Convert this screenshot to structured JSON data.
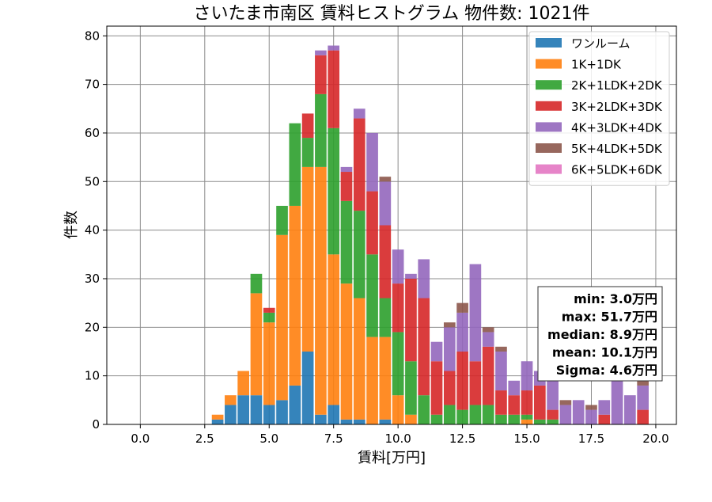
{
  "chart_data": {
    "type": "bar",
    "stacked": true,
    "title": "さいたま市南区 賃料ヒストグラム 物件数: 1021件",
    "xlabel": "賃料[万円]",
    "ylabel": "件数",
    "xlim": [
      -1.3,
      20.8
    ],
    "ylim": [
      0,
      82
    ],
    "xticks": [
      0.0,
      2.5,
      5.0,
      7.5,
      10.0,
      12.5,
      15.0,
      17.5,
      20.0
    ],
    "xtick_labels": [
      "0.0",
      "2.5",
      "5.0",
      "7.5",
      "10.0",
      "12.5",
      "15.0",
      "17.5",
      "20.0"
    ],
    "yticks": [
      0,
      10,
      20,
      30,
      40,
      50,
      60,
      70,
      80
    ],
    "ytick_labels": [
      "0",
      "10",
      "20",
      "30",
      "40",
      "50",
      "60",
      "70",
      "80"
    ],
    "grid": true,
    "legend_position": "top-right",
    "bin_width": 0.5,
    "bins": [
      3.0,
      3.5,
      4.0,
      4.5,
      5.0,
      5.5,
      6.0,
      6.5,
      7.0,
      7.5,
      8.0,
      8.5,
      9.0,
      9.5,
      10.0,
      10.5,
      11.0,
      11.5,
      12.0,
      12.5,
      13.0,
      13.5,
      14.0,
      14.5,
      15.0,
      15.5,
      16.0,
      16.5,
      17.0,
      17.5,
      18.0,
      18.5,
      19.0,
      19.5
    ],
    "series": [
      {
        "name": "ワンルーム",
        "color": "#1f77b4",
        "values": [
          1,
          4,
          6,
          6,
          4,
          5,
          8,
          15,
          2,
          4,
          1,
          1,
          0,
          1,
          0,
          0,
          0,
          0,
          0,
          0,
          0,
          0,
          0,
          0,
          0,
          0,
          0,
          0,
          0,
          0,
          0,
          0,
          0,
          0
        ]
      },
      {
        "name": "1K+1DK",
        "color": "#ff7f0e",
        "values": [
          1,
          2,
          5,
          21,
          17,
          34,
          37,
          38,
          51,
          31,
          28,
          25,
          18,
          17,
          6,
          2,
          0,
          0,
          0,
          0,
          0,
          0,
          0,
          0,
          1,
          0,
          0,
          0,
          0,
          0,
          0,
          0,
          0,
          0
        ]
      },
      {
        "name": "2K+1LDK+2DK",
        "color": "#2ca02c",
        "values": [
          0,
          0,
          0,
          4,
          2,
          6,
          17,
          6,
          15,
          26,
          17,
          18,
          17,
          8,
          13,
          11,
          6,
          2,
          4,
          3,
          4,
          4,
          2,
          2,
          1,
          1,
          1,
          0,
          0,
          0,
          0,
          0,
          0,
          0
        ]
      },
      {
        "name": "3K+2LDK+3DK",
        "color": "#d62728",
        "values": [
          0,
          0,
          0,
          0,
          1,
          0,
          0,
          5,
          8,
          16,
          6,
          19,
          13,
          15,
          10,
          17,
          20,
          11,
          7,
          12,
          9,
          12,
          5,
          4,
          5,
          7,
          2,
          0,
          0,
          0,
          2,
          0,
          0,
          3
        ]
      },
      {
        "name": "4K+3LDK+4DK",
        "color": "#9467bd",
        "values": [
          0,
          0,
          0,
          0,
          0,
          0,
          0,
          0,
          1,
          1,
          1,
          2,
          12,
          9,
          7,
          1,
          8,
          4,
          9,
          8,
          20,
          3,
          8,
          3,
          6,
          3,
          8,
          4,
          5,
          3,
          3,
          9,
          6,
          5
        ]
      },
      {
        "name": "5K+4LDK+5DK",
        "color": "#8c564b",
        "values": [
          0,
          0,
          0,
          0,
          0,
          0,
          0,
          0,
          0,
          0,
          0,
          0,
          0,
          1,
          0,
          0,
          0,
          0,
          1,
          2,
          0,
          1,
          1,
          0,
          0,
          0,
          0,
          1,
          0,
          1,
          0,
          0,
          0,
          1
        ]
      },
      {
        "name": "6K+5LDK+6DK",
        "color": "#e377c2",
        "values": [
          0,
          0,
          0,
          0,
          0,
          0,
          0,
          0,
          0,
          0,
          0,
          0,
          0,
          0,
          0,
          0,
          0,
          0,
          0,
          0,
          0,
          0,
          0,
          0,
          0,
          0,
          0,
          0,
          0,
          0,
          0,
          0,
          0,
          0
        ]
      }
    ],
    "stats_box": [
      "min: 3.0万円",
      "max: 51.7万円",
      "median: 8.9万円",
      "mean: 10.1万円",
      "Sigma: 4.6万円"
    ]
  }
}
